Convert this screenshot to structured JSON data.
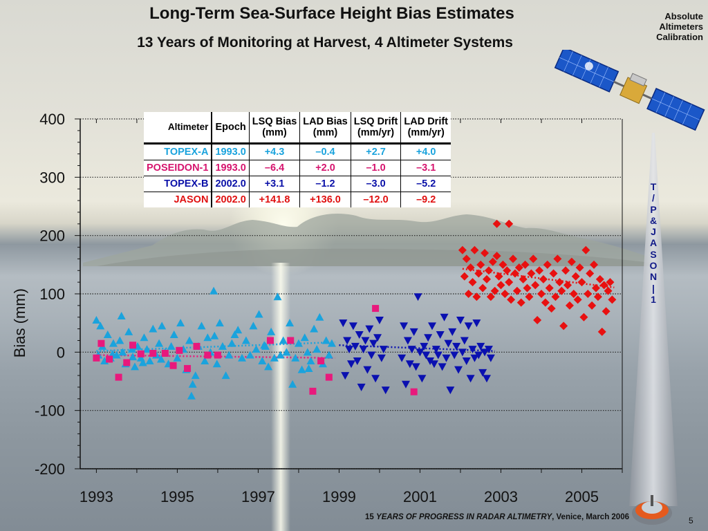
{
  "slide": {
    "title": "Long-Term Sea-Surface Height Bias Estimates",
    "subtitle": "13 Years of Monitoring at Harvest, 4 Altimeter Systems",
    "corner_label": [
      "Absolute",
      "Altimeters",
      "Calibration"
    ],
    "vertical_label": [
      "T",
      "/",
      "P",
      "",
      "&",
      "",
      "J",
      "A",
      "S",
      "O",
      "N",
      "|",
      "1"
    ],
    "footer_num": "15",
    "footer_italic": "YEARS OF PROGRESS IN RADAR ALTIMETRY",
    "footer_rest": ", Venice, March 2006",
    "slide_number": "5"
  },
  "table": {
    "headers": [
      "Altimeter",
      "Epoch",
      "LSQ Bias\n(mm)",
      "LAD Bias\n(mm)",
      "LSQ Drift\n(mm/yr)",
      "LAD Drift\n(mm/yr)"
    ],
    "rows": [
      {
        "cells": [
          "TOPEX-A",
          "1993.0",
          "+4.3",
          "–0.4",
          "+2.7",
          "+4.0"
        ],
        "color": "#1aa3dd"
      },
      {
        "cells": [
          "POSEIDON-1",
          "1993.0",
          "–6.4",
          "+2.0",
          "–1.0",
          "–3.1"
        ],
        "color": "#d6146e"
      },
      {
        "cells": [
          "TOPEX-B",
          "2002.0",
          "+3.1",
          "–1.2",
          "–3.0",
          "–5.2"
        ],
        "color": "#0a10a8"
      },
      {
        "cells": [
          "JASON",
          "2002.0",
          "+141.8",
          "+136.0",
          "–12.0",
          "–9.2"
        ],
        "color": "#e01010"
      }
    ]
  },
  "chart_data": {
    "type": "scatter",
    "title": "",
    "xlabel": "",
    "ylabel": "Bias (mm)",
    "xlim": [
      1992.6,
      2006.0
    ],
    "ylim": [
      -200,
      400
    ],
    "xticks": [
      "1993",
      "1995",
      "1997",
      "1999",
      "2001",
      "2003",
      "2005"
    ],
    "yticks": [
      "400",
      "300",
      "200",
      "100",
      "0",
      "-100",
      "-200"
    ],
    "grid": "horizontal dotted",
    "series": [
      {
        "name": "TOPEX-A",
        "marker": "triangle-up",
        "color": "#1aa3dd",
        "trend": {
          "x": [
            1993.0,
            1998.9
          ],
          "y": [
            2,
            17
          ]
        },
        "x": [
          1993.0,
          1993.05,
          1993.1,
          1993.15,
          1993.2,
          1993.28,
          1993.35,
          1993.42,
          1993.5,
          1993.58,
          1993.65,
          1993.72,
          1993.8,
          1993.88,
          1993.95,
          1994.02,
          1994.1,
          1994.18,
          1994.25,
          1994.32,
          1994.4,
          1994.48,
          1994.55,
          1994.62,
          1994.7,
          1994.78,
          1994.85,
          1994.92,
          1995.0,
          1995.08,
          1995.15,
          1995.22,
          1995.3,
          1995.38,
          1995.45,
          1995.52,
          1995.6,
          1995.68,
          1995.75,
          1995.82,
          1995.9,
          1995.98,
          1996.05,
          1996.12,
          1996.2,
          1996.28,
          1996.35,
          1996.42,
          1996.6,
          1996.7,
          1996.8,
          1996.88,
          1996.95,
          1997.02,
          1997.1,
          1997.18,
          1997.25,
          1997.32,
          1997.4,
          1997.48,
          1997.55,
          1997.62,
          1997.7,
          1997.78,
          1997.85,
          1997.92,
          1998.0,
          1998.08,
          1998.15,
          1998.22,
          1998.3,
          1998.38,
          1998.45,
          1998.52,
          1998.6,
          1998.68,
          1998.75,
          1998.82,
          1993.4,
          1993.9,
          1994.6,
          1995.35,
          1995.92,
          1997.15,
          1998.25,
          1996.5,
          1994.15,
          1993.62
        ],
        "y": [
          55,
          -5,
          45,
          10,
          -15,
          30,
          -10,
          15,
          -5,
          20,
          0,
          -20,
          35,
          5,
          -25,
          10,
          -10,
          25,
          5,
          -15,
          40,
          -5,
          15,
          45,
          0,
          -20,
          10,
          30,
          -10,
          50,
          5,
          -30,
          20,
          -55,
          -40,
          10,
          45,
          -15,
          25,
          0,
          105,
          -20,
          50,
          10,
          -40,
          -5,
          15,
          30,
          -10,
          20,
          -5,
          45,
          5,
          65,
          -15,
          10,
          -25,
          35,
          -10,
          95,
          -5,
          20,
          0,
          50,
          -55,
          -10,
          15,
          -30,
          25,
          0,
          -15,
          40,
          5,
          60,
          -20,
          20,
          -5,
          15,
          -3,
          -8,
          -12,
          -75,
          28,
          12,
          -28,
          38,
          -18,
          62
        ]
      },
      {
        "name": "POSEIDON-1",
        "marker": "square",
        "color": "#e8197c",
        "trend": {
          "x": [
            1993.0,
            1998.9
          ],
          "y": [
            -5,
            -10
          ]
        },
        "x": [
          1993.0,
          1993.12,
          1993.32,
          1993.55,
          1993.75,
          1993.9,
          1994.1,
          1994.4,
          1994.7,
          1994.9,
          1995.05,
          1995.25,
          1995.48,
          1995.75,
          1996.0,
          1997.3,
          1997.8,
          1998.35,
          1998.55,
          1998.75,
          1999.9,
          2000.85
        ],
        "y": [
          -10,
          15,
          -12,
          -43,
          -18,
          12,
          -3,
          -2,
          -2,
          -23,
          3,
          -28,
          10,
          -5,
          -5,
          20,
          20,
          -67,
          -15,
          -43,
          75,
          -68
        ]
      },
      {
        "name": "TOPEX-B",
        "marker": "triangle-down",
        "color": "#0a10b0",
        "trend": {
          "x": [
            1999.0,
            2002.85
          ],
          "y": [
            12,
            2
          ]
        },
        "x": [
          1999.1,
          1999.15,
          1999.2,
          1999.25,
          1999.3,
          1999.35,
          1999.4,
          1999.45,
          1999.5,
          1999.55,
          1999.6,
          1999.65,
          1999.7,
          1999.75,
          1999.8,
          1999.85,
          1999.9,
          1999.95,
          2000.0,
          2000.05,
          2000.1,
          2000.15,
          2000.55,
          2000.6,
          2000.65,
          2000.7,
          2000.75,
          2000.8,
          2000.85,
          2000.9,
          2000.95,
          2001.0,
          2001.05,
          2001.1,
          2001.15,
          2001.2,
          2001.25,
          2001.3,
          2001.35,
          2001.4,
          2001.45,
          2001.5,
          2001.55,
          2001.6,
          2001.65,
          2001.7,
          2001.75,
          2001.8,
          2001.85,
          2001.9,
          2001.95,
          2002.0,
          2002.05,
          2002.1,
          2002.15,
          2002.2,
          2002.25,
          2002.3,
          2002.35,
          2002.4,
          2002.45,
          2002.5,
          2002.55,
          2002.6,
          2002.65,
          2002.7,
          2002.75
        ],
        "y": [
          50,
          -40,
          20,
          5,
          -20,
          45,
          10,
          -15,
          30,
          -60,
          5,
          20,
          -30,
          40,
          -5,
          15,
          -45,
          25,
          55,
          -10,
          5,
          -65,
          -10,
          45,
          -55,
          20,
          -20,
          5,
          35,
          -25,
          95,
          0,
          -45,
          10,
          -5,
          25,
          -15,
          45,
          -20,
          5,
          -5,
          30,
          -25,
          60,
          -10,
          15,
          -65,
          35,
          -5,
          10,
          -30,
          55,
          0,
          20,
          -15,
          45,
          -45,
          5,
          -10,
          50,
          -5,
          10,
          -35,
          0,
          -45,
          5,
          -10
        ]
      },
      {
        "name": "JASON",
        "marker": "diamond",
        "color": "#e81010",
        "trend": {
          "x": [
            2002.05,
            2005.8
          ],
          "y": [
            143,
            111
          ]
        },
        "x": [
          2002.05,
          2002.1,
          2002.15,
          2002.2,
          2002.25,
          2002.3,
          2002.35,
          2002.4,
          2002.45,
          2002.5,
          2002.55,
          2002.6,
          2002.65,
          2002.7,
          2002.75,
          2002.8,
          2002.85,
          2002.9,
          2002.95,
          2003.0,
          2003.05,
          2003.1,
          2003.15,
          2003.2,
          2003.25,
          2003.3,
          2003.35,
          2003.4,
          2003.45,
          2003.5,
          2003.55,
          2003.6,
          2003.65,
          2003.7,
          2003.75,
          2003.8,
          2003.85,
          2003.9,
          2003.95,
          2004.0,
          2004.05,
          2004.1,
          2004.15,
          2004.2,
          2004.25,
          2004.3,
          2004.35,
          2004.4,
          2004.45,
          2004.5,
          2004.55,
          2004.6,
          2004.65,
          2004.7,
          2004.75,
          2004.8,
          2004.85,
          2004.9,
          2004.95,
          2005.0,
          2005.05,
          2005.1,
          2005.15,
          2005.2,
          2005.25,
          2005.3,
          2005.35,
          2005.4,
          2005.45,
          2005.5,
          2005.55,
          2005.6,
          2005.65,
          2005.7,
          2005.75,
          2002.9,
          2003.2
        ],
        "y": [
          175,
          130,
          160,
          100,
          145,
          120,
          175,
          95,
          135,
          150,
          110,
          170,
          125,
          140,
          95,
          155,
          105,
          165,
          130,
          115,
          150,
          100,
          140,
          120,
          90,
          160,
          135,
          105,
          145,
          85,
          125,
          150,
          110,
          95,
          135,
          160,
          115,
          55,
          140,
          100,
          125,
          85,
          150,
          110,
          75,
          135,
          95,
          160,
          120,
          105,
          45,
          140,
          115,
          80,
          155,
          100,
          130,
          90,
          145,
          120,
          60,
          175,
          100,
          135,
          80,
          150,
          110,
          95,
          125,
          35,
          115,
          70,
          105,
          120,
          90,
          220,
          220
        ]
      }
    ]
  }
}
